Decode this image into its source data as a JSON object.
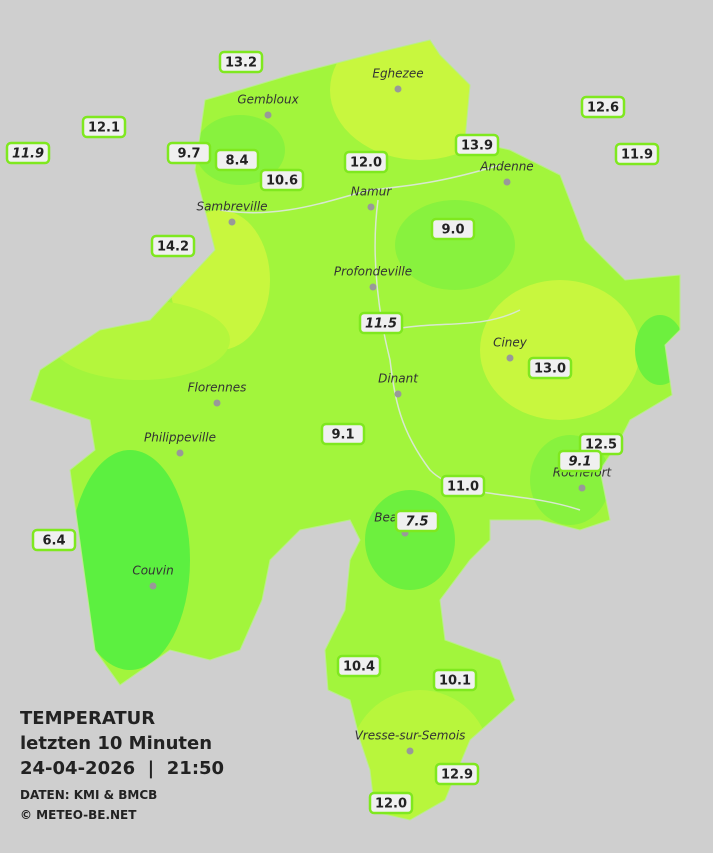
{
  "map": {
    "cities": [
      "Eghezee",
      "Gembloux",
      "Andenne",
      "Namur",
      "Sambreville",
      "Profondeville",
      "Ciney",
      "Dinant",
      "Florennes",
      "Philippeville",
      "Rochefort",
      "Beauraing",
      "Couvin",
      "Vresse-sur-Semois"
    ],
    "stations": [
      {
        "label": "13.2"
      },
      {
        "label": "12.1"
      },
      {
        "label": "11.9",
        "italic": true
      },
      {
        "label": "9.7"
      },
      {
        "label": "8.4"
      },
      {
        "label": "10.6"
      },
      {
        "label": "12.0"
      },
      {
        "label": "13.9"
      },
      {
        "label": "12.6"
      },
      {
        "label": "11.9"
      },
      {
        "label": "14.2"
      },
      {
        "label": "9.0"
      },
      {
        "label": "11.5",
        "italic": true
      },
      {
        "label": "13.0"
      },
      {
        "label": "9.1"
      },
      {
        "label": "12.5"
      },
      {
        "label": "9.1",
        "italic": true
      },
      {
        "label": "11.0"
      },
      {
        "label": "7.5",
        "italic": true
      },
      {
        "label": "6.4"
      },
      {
        "label": "10.4"
      },
      {
        "label": "10.1"
      },
      {
        "label": "12.9"
      },
      {
        "label": "12.0"
      }
    ]
  },
  "legend": {
    "title": "TEMPERATUR",
    "subtitle": "letzten 10 Minuten",
    "datetime": "24-04-2026  |  21:50",
    "source": "DATEN: KMI & BMCB",
    "copyright": "© METEO-BE.NET"
  }
}
